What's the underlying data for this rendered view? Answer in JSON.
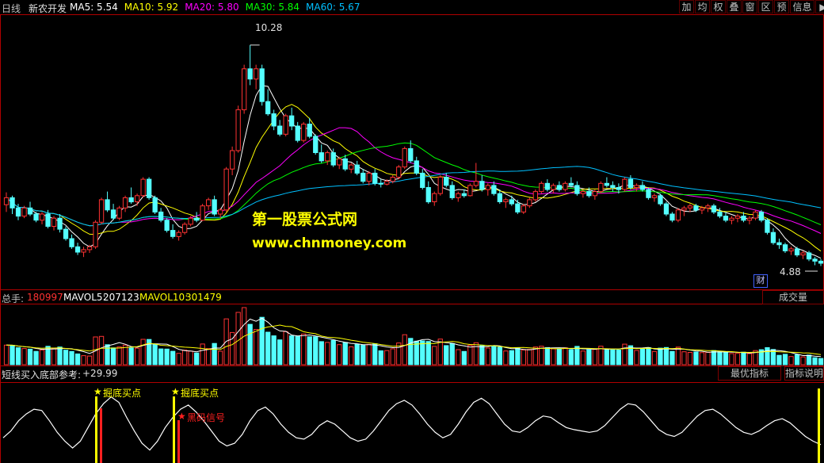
{
  "header": {
    "period": "日线",
    "stock_name": "新农开发",
    "ma": [
      {
        "label": "MA5:",
        "value": "5.54",
        "color": "#ffffff"
      },
      {
        "label": "MA10:",
        "value": "5.92",
        "color": "#ffff00"
      },
      {
        "label": "MA20:",
        "value": "5.80",
        "color": "#ff00ff"
      },
      {
        "label": "MA30:",
        "value": "5.84",
        "color": "#00ff00"
      },
      {
        "label": "MA60:",
        "value": "5.67",
        "color": "#00c0ff"
      }
    ]
  },
  "toolbar": {
    "buttons": [
      "加",
      "均",
      "权",
      "叠",
      "窗",
      "区",
      "预",
      "信息"
    ],
    "arrow_icon": "right-arrow-icon"
  },
  "price_panel": {
    "high_label": "10.28",
    "low_label": "4.88",
    "cai_badge": "财",
    "watermark_cn": "第一股票公式网",
    "watermark_url": "www.chnmoney.com"
  },
  "volume_panel": {
    "total_label": "总手:",
    "total_value": "180997",
    "mavol5_label": "MAVOL5:",
    "mavol5_value": "207123",
    "mavol10_label": "MAVOL10:",
    "mavol10_value": "301479",
    "button": "成交量"
  },
  "indicator_panel": {
    "title": "短线买入底部参考:",
    "value": "+29.99",
    "buttons": [
      "最优指标",
      "指标说明"
    ],
    "signal_buy": "掘底买点",
    "signal_black": "黑码信号"
  },
  "colors": {
    "up": "#ff3232",
    "down": "#54ffff",
    "border": "#b00000",
    "signal_yellow": "#ffff00",
    "signal_red": "#ff2020"
  },
  "chart_data": {
    "type": "candlestick",
    "price_ylim": [
      4.6,
      10.8
    ],
    "candles_ohlc": [
      [
        6.38,
        6.68,
        6.2,
        6.55
      ],
      [
        6.55,
        6.6,
        6.15,
        6.3
      ],
      [
        6.3,
        6.4,
        6.0,
        6.1
      ],
      [
        6.1,
        6.35,
        6.05,
        6.3
      ],
      [
        6.3,
        6.45,
        6.1,
        6.15
      ],
      [
        6.15,
        6.2,
        5.95,
        6.0
      ],
      [
        6.0,
        6.2,
        5.9,
        6.15
      ],
      [
        6.15,
        6.25,
        5.8,
        5.85
      ],
      [
        5.85,
        6.1,
        5.75,
        6.05
      ],
      [
        6.05,
        6.15,
        5.7,
        5.78
      ],
      [
        5.78,
        5.85,
        5.5,
        5.55
      ],
      [
        5.55,
        5.65,
        5.3,
        5.35
      ],
      [
        5.35,
        5.45,
        5.15,
        5.22
      ],
      [
        5.22,
        5.35,
        5.1,
        5.28
      ],
      [
        5.28,
        5.4,
        5.2,
        5.35
      ],
      [
        5.35,
        6.0,
        5.3,
        5.95
      ],
      [
        5.95,
        6.55,
        5.9,
        6.5
      ],
      [
        6.5,
        6.7,
        6.2,
        6.25
      ],
      [
        6.25,
        6.4,
        6.0,
        6.05
      ],
      [
        6.05,
        6.35,
        6.0,
        6.3
      ],
      [
        6.3,
        6.6,
        6.2,
        6.55
      ],
      [
        6.55,
        6.8,
        6.4,
        6.45
      ],
      [
        6.45,
        6.65,
        6.35,
        6.6
      ],
      [
        6.6,
        7.05,
        6.55,
        7.0
      ],
      [
        7.0,
        7.05,
        6.5,
        6.55
      ],
      [
        6.55,
        6.6,
        6.15,
        6.2
      ],
      [
        6.2,
        6.3,
        5.95,
        6.0
      ],
      [
        6.0,
        6.05,
        5.7,
        5.75
      ],
      [
        5.75,
        5.9,
        5.55,
        5.6
      ],
      [
        5.6,
        5.75,
        5.5,
        5.7
      ],
      [
        5.7,
        5.95,
        5.65,
        5.9
      ],
      [
        5.9,
        6.1,
        5.85,
        6.05
      ],
      [
        6.05,
        6.2,
        5.95,
        6.0
      ],
      [
        6.0,
        6.4,
        5.98,
        6.35
      ],
      [
        6.35,
        6.55,
        6.25,
        6.5
      ],
      [
        6.5,
        6.6,
        6.1,
        6.15
      ],
      [
        6.15,
        6.3,
        6.05,
        6.25
      ],
      [
        6.25,
        7.3,
        6.2,
        7.25
      ],
      [
        7.25,
        7.8,
        7.1,
        7.7
      ],
      [
        7.7,
        8.8,
        7.65,
        8.7
      ],
      [
        8.7,
        9.8,
        8.6,
        9.7
      ],
      [
        9.7,
        10.28,
        9.3,
        9.45
      ],
      [
        9.45,
        9.8,
        9.2,
        9.7
      ],
      [
        9.7,
        9.8,
        8.8,
        8.9
      ],
      [
        8.9,
        9.2,
        8.55,
        8.6
      ],
      [
        8.6,
        8.7,
        8.2,
        8.3
      ],
      [
        8.3,
        8.45,
        8.05,
        8.1
      ],
      [
        8.1,
        8.6,
        8.05,
        8.55
      ],
      [
        8.55,
        8.75,
        8.2,
        8.3
      ],
      [
        8.3,
        8.4,
        7.9,
        7.95
      ],
      [
        7.95,
        8.4,
        7.9,
        8.35
      ],
      [
        8.35,
        8.5,
        8.0,
        8.05
      ],
      [
        8.05,
        8.1,
        7.6,
        7.65
      ],
      [
        7.65,
        7.85,
        7.4,
        7.45
      ],
      [
        7.45,
        7.7,
        7.35,
        7.65
      ],
      [
        7.65,
        7.75,
        7.3,
        7.35
      ],
      [
        7.35,
        7.55,
        7.25,
        7.5
      ],
      [
        7.5,
        7.6,
        7.2,
        7.25
      ],
      [
        7.25,
        7.4,
        7.15,
        7.35
      ],
      [
        7.35,
        7.45,
        7.1,
        7.15
      ],
      [
        7.15,
        7.25,
        6.9,
        6.95
      ],
      [
        6.95,
        7.2,
        6.85,
        7.15
      ],
      [
        7.15,
        7.25,
        6.85,
        6.9
      ],
      [
        6.9,
        7.0,
        6.8,
        6.88
      ],
      [
        6.88,
        7.0,
        6.85,
        6.95
      ],
      [
        6.95,
        7.1,
        6.9,
        7.05
      ],
      [
        7.05,
        7.35,
        7.0,
        7.3
      ],
      [
        7.3,
        7.8,
        7.25,
        7.75
      ],
      [
        7.75,
        7.95,
        7.4,
        7.45
      ],
      [
        7.45,
        7.55,
        7.1,
        7.15
      ],
      [
        7.15,
        7.25,
        6.75,
        6.8
      ],
      [
        6.8,
        6.95,
        6.4,
        6.45
      ],
      [
        6.45,
        6.7,
        6.35,
        6.65
      ],
      [
        6.65,
        7.1,
        6.6,
        7.05
      ],
      [
        7.05,
        7.15,
        6.8,
        6.85
      ],
      [
        6.85,
        6.95,
        6.5,
        6.55
      ],
      [
        6.55,
        6.7,
        6.45,
        6.65
      ],
      [
        6.65,
        6.75,
        6.55,
        6.6
      ],
      [
        6.6,
        6.9,
        6.58,
        6.85
      ],
      [
        6.85,
        7.4,
        6.8,
        6.95
      ],
      [
        6.95,
        7.1,
        6.7,
        6.75
      ],
      [
        6.75,
        6.9,
        6.6,
        6.85
      ],
      [
        6.85,
        6.95,
        6.6,
        6.65
      ],
      [
        6.65,
        6.75,
        6.4,
        6.45
      ],
      [
        6.45,
        6.55,
        6.3,
        6.5
      ],
      [
        6.5,
        6.6,
        6.35,
        6.4
      ],
      [
        6.4,
        6.5,
        6.15,
        6.2
      ],
      [
        6.2,
        6.4,
        6.15,
        6.35
      ],
      [
        6.35,
        6.55,
        6.3,
        6.5
      ],
      [
        6.5,
        6.75,
        6.45,
        6.7
      ],
      [
        6.7,
        6.95,
        6.65,
        6.9
      ],
      [
        6.9,
        7.0,
        6.7,
        6.75
      ],
      [
        6.75,
        6.9,
        6.65,
        6.85
      ],
      [
        6.85,
        6.95,
        6.7,
        6.75
      ],
      [
        6.75,
        6.95,
        6.7,
        6.9
      ],
      [
        6.9,
        7.05,
        6.8,
        6.85
      ],
      [
        6.85,
        6.95,
        6.6,
        6.65
      ],
      [
        6.65,
        6.75,
        6.55,
        6.7
      ],
      [
        6.7,
        6.8,
        6.55,
        6.6
      ],
      [
        6.6,
        6.75,
        6.5,
        6.7
      ],
      [
        6.7,
        6.95,
        6.65,
        6.9
      ],
      [
        6.9,
        7.05,
        6.8,
        6.85
      ],
      [
        6.85,
        6.95,
        6.7,
        6.8
      ],
      [
        6.8,
        6.9,
        6.65,
        6.75
      ],
      [
        6.75,
        7.05,
        6.7,
        7.0
      ],
      [
        7.0,
        7.1,
        6.75,
        6.8
      ],
      [
        6.8,
        6.9,
        6.7,
        6.85
      ],
      [
        6.85,
        6.95,
        6.7,
        6.75
      ],
      [
        6.75,
        6.8,
        6.5,
        6.55
      ],
      [
        6.55,
        6.65,
        6.45,
        6.6
      ],
      [
        6.6,
        6.65,
        6.35,
        6.4
      ],
      [
        6.4,
        6.45,
        6.1,
        6.15
      ],
      [
        6.15,
        6.2,
        5.95,
        6.0
      ],
      [
        6.0,
        6.3,
        5.95,
        6.25
      ],
      [
        6.25,
        6.35,
        6.1,
        6.3
      ],
      [
        6.3,
        6.4,
        6.2,
        6.35
      ],
      [
        6.35,
        6.4,
        6.2,
        6.25
      ],
      [
        6.25,
        6.35,
        6.15,
        6.3
      ],
      [
        6.3,
        6.4,
        6.2,
        6.35
      ],
      [
        6.35,
        6.4,
        6.15,
        6.2
      ],
      [
        6.2,
        6.3,
        6.05,
        6.1
      ],
      [
        6.1,
        6.2,
        5.95,
        6.0
      ],
      [
        6.0,
        6.1,
        5.9,
        6.05
      ],
      [
        6.05,
        6.15,
        5.95,
        6.1
      ],
      [
        6.1,
        6.2,
        5.95,
        6.0
      ],
      [
        6.0,
        6.1,
        5.9,
        6.05
      ],
      [
        6.05,
        6.25,
        6.0,
        6.2
      ],
      [
        6.2,
        6.25,
        5.95,
        6.0
      ],
      [
        6.0,
        6.05,
        5.65,
        5.7
      ],
      [
        5.7,
        5.8,
        5.4,
        5.45
      ],
      [
        5.45,
        5.55,
        5.3,
        5.4
      ],
      [
        5.4,
        5.45,
        5.2,
        5.25
      ],
      [
        5.25,
        5.35,
        5.15,
        5.3
      ],
      [
        5.3,
        5.35,
        5.1,
        5.15
      ],
      [
        5.15,
        5.25,
        5.05,
        5.2
      ],
      [
        5.2,
        5.25,
        5.0,
        5.05
      ],
      [
        5.05,
        5.1,
        4.9,
        5.0
      ],
      [
        5.0,
        5.05,
        4.88,
        4.95
      ]
    ],
    "indicator_curve": [
      0.3,
      0.4,
      0.55,
      0.65,
      0.72,
      0.7,
      0.55,
      0.38,
      0.25,
      0.15,
      0.25,
      0.45,
      0.65,
      0.8,
      0.9,
      0.82,
      0.6,
      0.4,
      0.22,
      0.12,
      0.25,
      0.45,
      0.6,
      0.72,
      0.78,
      0.68,
      0.55,
      0.4,
      0.25,
      0.18,
      0.22,
      0.35,
      0.55,
      0.7,
      0.75,
      0.65,
      0.5,
      0.38,
      0.3,
      0.28,
      0.35,
      0.48,
      0.55,
      0.5,
      0.4,
      0.3,
      0.25,
      0.28,
      0.4,
      0.55,
      0.7,
      0.8,
      0.85,
      0.78,
      0.65,
      0.5,
      0.38,
      0.3,
      0.35,
      0.5,
      0.68,
      0.82,
      0.88,
      0.8,
      0.65,
      0.5,
      0.4,
      0.38,
      0.45,
      0.55,
      0.62,
      0.6,
      0.52,
      0.45,
      0.42,
      0.4,
      0.38,
      0.4,
      0.48,
      0.6,
      0.72,
      0.8,
      0.78,
      0.68,
      0.55,
      0.42,
      0.35,
      0.32,
      0.38,
      0.5,
      0.62,
      0.7,
      0.72,
      0.65,
      0.55,
      0.45,
      0.38,
      0.35,
      0.4,
      0.48,
      0.55,
      0.58,
      0.52,
      0.42,
      0.32,
      0.25,
      0.2
    ]
  }
}
